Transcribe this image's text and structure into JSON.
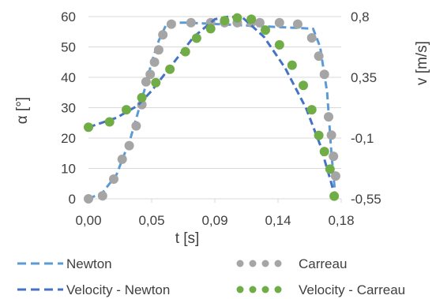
{
  "chart_data": {
    "type": "line",
    "xlabel": "t [s]",
    "ylabel_left": "α [°]",
    "ylabel_right": "v [m/s]",
    "xlim": [
      0,
      0.18
    ],
    "ylim_left": [
      0,
      60
    ],
    "ylim_right": [
      -0.55,
      0.8
    ],
    "x_ticks": [
      0,
      0.045,
      0.09,
      0.135,
      0.18
    ],
    "x_tick_labels": [
      "0,00",
      "0,05",
      "0,09",
      "0,14",
      "0,18"
    ],
    "y_left_ticks": [
      0,
      10,
      20,
      30,
      40,
      50,
      60
    ],
    "y_left_tick_labels": [
      "0",
      "10",
      "20",
      "30",
      "40",
      "50",
      "60"
    ],
    "y_right_ticks": [
      -0.55,
      -0.1,
      0.35,
      0.8
    ],
    "y_right_tick_labels": [
      "-0,55",
      "-0,1",
      "0,35",
      "0,8"
    ],
    "grid": "horizontal",
    "legend_position": "bottom",
    "series": [
      {
        "name": "Newton",
        "axis": "left",
        "style": "dashed-line",
        "color": "#5B9BD5",
        "x": [
          0,
          0.01,
          0.02,
          0.03,
          0.04,
          0.045,
          0.05,
          0.055,
          0.06,
          0.07,
          0.16,
          0.165,
          0.17,
          0.173,
          0.176
        ],
        "y": [
          0,
          2,
          8,
          20,
          36,
          45,
          52,
          57,
          58,
          58,
          56,
          50,
          35,
          15,
          0
        ]
      },
      {
        "name": "Carreau",
        "axis": "left",
        "style": "dots",
        "color": "#A5A5A5",
        "x": [
          0,
          0.01,
          0.018,
          0.024,
          0.029,
          0.034,
          0.038,
          0.041,
          0.044,
          0.047,
          0.05,
          0.053,
          0.059,
          0.073,
          0.087,
          0.097,
          0.106,
          0.116,
          0.122,
          0.136,
          0.149,
          0.159,
          0.164,
          0.168,
          0.171,
          0.173,
          0.1745,
          0.176
        ],
        "y": [
          0,
          1,
          6.5,
          13,
          17.5,
          24,
          31,
          38.5,
          41,
          45,
          49,
          54,
          57.5,
          58,
          58,
          58,
          58,
          58,
          58,
          58,
          57.5,
          53,
          47,
          41,
          27,
          21,
          14,
          7.5
        ]
      },
      {
        "name": "Velocity - Newton",
        "axis": "right",
        "style": "dashed-line",
        "color": "#4472C4",
        "x": [
          0,
          0.02,
          0.035,
          0.045,
          0.06,
          0.075,
          0.09,
          0.1,
          0.11,
          0.125,
          0.14,
          0.155,
          0.165,
          0.172,
          0.176
        ],
        "y": [
          -0.02,
          0.05,
          0.14,
          0.25,
          0.45,
          0.65,
          0.78,
          0.8,
          0.79,
          0.65,
          0.42,
          0.12,
          -0.15,
          -0.4,
          -0.55
        ]
      },
      {
        "name": "Velocity - Carreau",
        "axis": "right",
        "style": "dots",
        "color": "#70AD47",
        "x": [
          0,
          0.015,
          0.027,
          0.038,
          0.048,
          0.058,
          0.069,
          0.077,
          0.087,
          0.097,
          0.106,
          0.116,
          0.126,
          0.136,
          0.145,
          0.153,
          0.159,
          0.164,
          0.168,
          0.172,
          0.175
        ],
        "y": [
          -0.02,
          0.02,
          0.11,
          0.2,
          0.31,
          0.41,
          0.54,
          0.64,
          0.71,
          0.77,
          0.79,
          0.78,
          0.7,
          0.59,
          0.44,
          0.29,
          0.11,
          -0.08,
          -0.2,
          -0.33,
          -0.53
        ]
      }
    ]
  }
}
